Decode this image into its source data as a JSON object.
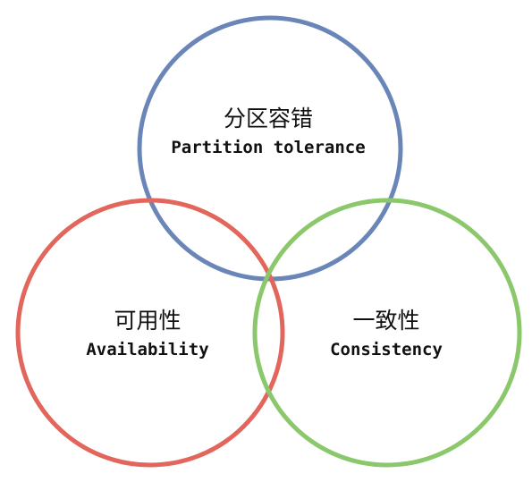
{
  "diagram": {
    "type": "venn",
    "circles": [
      {
        "id": "partition",
        "label_cn": "分区容错",
        "label_en": "Partition tolerance",
        "stroke_color": "#6a85b8"
      },
      {
        "id": "availability",
        "label_cn": "可用性",
        "label_en": "Availability",
        "stroke_color": "#e3665c"
      },
      {
        "id": "consistency",
        "label_cn": "一致性",
        "label_en": "Consistency",
        "stroke_color": "#8bc76b"
      }
    ]
  }
}
